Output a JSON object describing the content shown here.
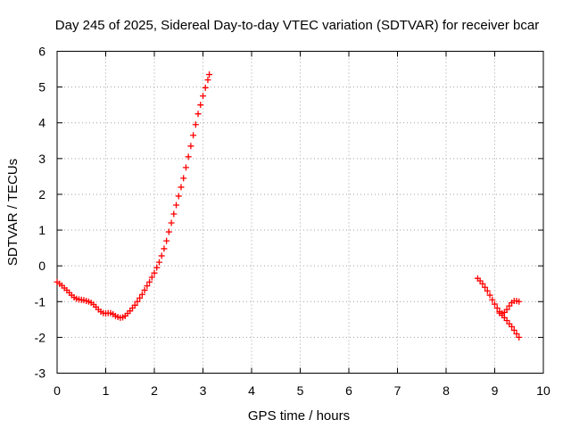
{
  "chart_data": {
    "type": "scatter",
    "title": "Day 245 of 2025, Sidereal Day-to-day VTEC variation (SDTVAR) for receiver bcar",
    "xlabel": "GPS time / hours",
    "ylabel": "SDTVAR / TECUs",
    "xlim": [
      0,
      10
    ],
    "ylim": [
      -3,
      6
    ],
    "xticks": [
      "0",
      "1",
      "2",
      "3",
      "4",
      "5",
      "6",
      "7",
      "8",
      "9",
      "10"
    ],
    "yticks": [
      "-3",
      "-2",
      "-1",
      "0",
      "1",
      "2",
      "3",
      "4",
      "5",
      "6"
    ],
    "grid": true,
    "legend": "none",
    "marker": "plus",
    "series": [
      {
        "color": "#ff0000",
        "points": [
          [
            0.0,
            -0.45
          ],
          [
            0.05,
            -0.5
          ],
          [
            0.1,
            -0.55
          ],
          [
            0.15,
            -0.62
          ],
          [
            0.2,
            -0.68
          ],
          [
            0.25,
            -0.75
          ],
          [
            0.3,
            -0.82
          ],
          [
            0.35,
            -0.88
          ],
          [
            0.4,
            -0.92
          ],
          [
            0.45,
            -0.94
          ],
          [
            0.5,
            -0.95
          ],
          [
            0.55,
            -0.96
          ],
          [
            0.6,
            -0.98
          ],
          [
            0.65,
            -1.0
          ],
          [
            0.7,
            -1.03
          ],
          [
            0.75,
            -1.08
          ],
          [
            0.8,
            -1.15
          ],
          [
            0.85,
            -1.22
          ],
          [
            0.9,
            -1.28
          ],
          [
            0.95,
            -1.32
          ],
          [
            1.0,
            -1.33
          ],
          [
            1.05,
            -1.32
          ],
          [
            1.1,
            -1.32
          ],
          [
            1.15,
            -1.35
          ],
          [
            1.2,
            -1.4
          ],
          [
            1.25,
            -1.43
          ],
          [
            1.3,
            -1.45
          ],
          [
            1.35,
            -1.44
          ],
          [
            1.4,
            -1.4
          ],
          [
            1.45,
            -1.33
          ],
          [
            1.5,
            -1.26
          ],
          [
            1.55,
            -1.18
          ],
          [
            1.6,
            -1.1
          ],
          [
            1.65,
            -1.0
          ],
          [
            1.7,
            -0.9
          ],
          [
            1.75,
            -0.8
          ],
          [
            1.8,
            -0.68
          ],
          [
            1.85,
            -0.56
          ],
          [
            1.9,
            -0.45
          ],
          [
            1.95,
            -0.32
          ],
          [
            2.0,
            -0.2
          ],
          [
            2.05,
            -0.05
          ],
          [
            2.1,
            0.1
          ],
          [
            2.15,
            0.28
          ],
          [
            2.2,
            0.48
          ],
          [
            2.25,
            0.7
          ],
          [
            2.3,
            0.95
          ],
          [
            2.35,
            1.2
          ],
          [
            2.4,
            1.45
          ],
          [
            2.45,
            1.7
          ],
          [
            2.5,
            1.95
          ],
          [
            2.55,
            2.2
          ],
          [
            2.6,
            2.45
          ],
          [
            2.65,
            2.75
          ],
          [
            2.7,
            3.05
          ],
          [
            2.75,
            3.35
          ],
          [
            2.8,
            3.65
          ],
          [
            2.85,
            3.95
          ],
          [
            2.9,
            4.25
          ],
          [
            2.95,
            4.5
          ],
          [
            3.0,
            4.75
          ],
          [
            3.05,
            4.98
          ],
          [
            3.1,
            5.2
          ],
          [
            3.13,
            5.35
          ]
        ]
      },
      {
        "color": "#ff0000",
        "points": [
          [
            8.65,
            -0.35
          ],
          [
            8.7,
            -0.42
          ],
          [
            8.75,
            -0.5
          ],
          [
            8.8,
            -0.6
          ],
          [
            8.85,
            -0.7
          ],
          [
            8.9,
            -0.82
          ],
          [
            8.95,
            -0.95
          ],
          [
            9.0,
            -1.07
          ],
          [
            9.05,
            -1.18
          ],
          [
            9.1,
            -1.28
          ],
          [
            9.15,
            -1.33
          ],
          [
            9.2,
            -1.3
          ],
          [
            9.25,
            -1.22
          ],
          [
            9.3,
            -1.12
          ],
          [
            9.35,
            -1.03
          ],
          [
            9.4,
            -0.98
          ],
          [
            9.45,
            -0.98
          ],
          [
            9.5,
            -1.0
          ]
        ]
      },
      {
        "color": "#ff0000",
        "points": [
          [
            9.1,
            -1.32
          ],
          [
            9.15,
            -1.38
          ],
          [
            9.2,
            -1.45
          ],
          [
            9.25,
            -1.53
          ],
          [
            9.3,
            -1.62
          ],
          [
            9.35,
            -1.7
          ],
          [
            9.4,
            -1.8
          ],
          [
            9.45,
            -1.9
          ],
          [
            9.5,
            -2.0
          ]
        ]
      }
    ]
  }
}
